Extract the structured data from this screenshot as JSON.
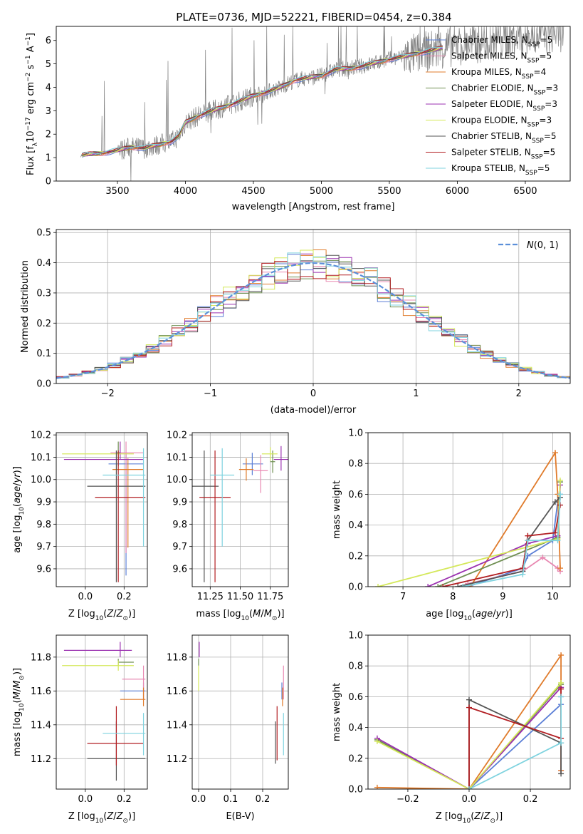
{
  "figure": {
    "title": "PLATE=0736, MJD=52221, FIBERID=0454, z=0.384"
  },
  "colors": {
    "Chabrier MILES": "#5b7fd6",
    "Salpeter MILES": "#e889b2",
    "Kroupa MILES": "#e07b2b",
    "Chabrier ELODIE": "#6f8f52",
    "Salpeter ELODIE": "#9b32b0",
    "Kroupa ELODIE": "#d4e85a",
    "Chabrier STELIB": "#555555",
    "Salpeter STELIB": "#b21e22",
    "Kroupa STELIB": "#7fd3df",
    "data": "#808080",
    "gaussian": "#5b8fd9"
  },
  "models": [
    "Chabrier MILES",
    "Salpeter MILES",
    "Kroupa MILES",
    "Chabrier ELODIE",
    "Salpeter ELODIE",
    "Kroupa ELODIE",
    "Chabrier STELIB",
    "Salpeter STELIB",
    "Kroupa STELIB"
  ],
  "chart_data": [
    {
      "id": "spectrum",
      "type": "line",
      "xlabel": "wavelength [Angstrom, rest frame]",
      "ylabel": "Flux [f_λ 10^-17 erg cm^-2 s^-1 A^-1]",
      "xlim": [
        3050,
        6830
      ],
      "ylim": [
        0,
        6.6
      ],
      "xticks": [
        3500,
        4000,
        4500,
        5000,
        5500,
        6000,
        6500
      ],
      "yticks": [
        0,
        1,
        2,
        3,
        4,
        5,
        6
      ],
      "grid": false,
      "legend": {
        "placement": "upper right",
        "entries": [
          {
            "model": "Chabrier MILES",
            "label": "Chabrier MILES, N_SSP=5"
          },
          {
            "model": "Salpeter MILES",
            "label": "Salpeter MILES, N_SSP=5"
          },
          {
            "model": "Kroupa MILES",
            "label": "Kroupa MILES, N_SSP=4"
          },
          {
            "model": "Chabrier ELODIE",
            "label": "Chabrier ELODIE, N_SSP=3"
          },
          {
            "model": "Salpeter ELODIE",
            "label": "Salpeter ELODIE, N_SSP=3"
          },
          {
            "model": "Kroupa ELODIE",
            "label": "Kroupa ELODIE, N_SSP=3"
          },
          {
            "model": "Chabrier STELIB",
            "label": "Chabrier STELIB, N_SSP=5"
          },
          {
            "model": "Salpeter STELIB",
            "label": "Salpeter STELIB, N_SSP=5"
          },
          {
            "model": "Kroupa STELIB",
            "label": "Kroupa STELIB, N_SSP=5"
          }
        ]
      },
      "model_continuum": {
        "x": [
          3240,
          3300,
          3400,
          3500,
          3600,
          3700,
          3800,
          3900,
          3950,
          4000,
          4100,
          4200,
          4300,
          4400,
          4500,
          4600,
          4700,
          4800,
          4900,
          5000,
          5100,
          5200,
          5300,
          5400,
          5500,
          5600,
          5700,
          5800,
          5900
        ],
        "y": [
          1.1,
          1.15,
          1.2,
          1.3,
          1.45,
          1.4,
          1.55,
          1.7,
          1.9,
          2.5,
          2.8,
          3.0,
          3.2,
          3.4,
          3.65,
          3.8,
          4.0,
          4.3,
          4.4,
          4.5,
          4.75,
          4.8,
          4.9,
          5.05,
          5.2,
          5.3,
          5.45,
          5.55,
          5.7
        ]
      }
    },
    {
      "id": "residuals",
      "type": "line",
      "xlabel": "(data-model)/error",
      "ylabel": "Normed distribution",
      "xlim": [
        -2.5,
        2.5
      ],
      "ylim": [
        0,
        0.51
      ],
      "xticks": [
        -2,
        -1,
        0,
        1,
        2
      ],
      "yticks": [
        0.0,
        0.1,
        0.2,
        0.3,
        0.4,
        0.5
      ],
      "grid": true,
      "legend": {
        "placement": "upper right",
        "entries": [
          {
            "label": "N(0,1)"
          }
        ]
      },
      "series": [
        {
          "name": "N(0,1)",
          "mean": 0,
          "sigma": 1,
          "style": "dashed"
        }
      ]
    },
    {
      "id": "age_vs_Z",
      "type": "scatter",
      "xlabel": "Z [log10(Z/Z_sun)]",
      "ylabel": "age  [log10(age/yr)]",
      "xlim": [
        -0.15,
        0.32
      ],
      "ylim": [
        9.52,
        10.21
      ],
      "xticks": [
        0.0,
        0.2
      ],
      "yticks": [
        9.6,
        9.7,
        9.8,
        9.9,
        10.0,
        10.1,
        10.2
      ],
      "grid": true,
      "points": [
        {
          "model": "Chabrier MILES",
          "x": 0.21,
          "y": 10.07,
          "xerr": [
            0.09,
            0.09
          ],
          "yerr": [
            0.5,
            0.05
          ]
        },
        {
          "model": "Salpeter MILES",
          "x": 0.21,
          "y": 10.12,
          "xerr": [
            0.08,
            0.09
          ],
          "yerr": [
            0.45,
            0.05
          ]
        },
        {
          "model": "Kroupa MILES",
          "x": 0.22,
          "y": 10.045,
          "xerr": [
            0.08,
            0.08
          ],
          "yerr": [
            0.35,
            0.05
          ]
        },
        {
          "model": "Chabrier ELODIE",
          "x": 0.17,
          "y": 10.12,
          "xerr": [
            0.01,
            0.01
          ],
          "yerr": [
            0.06,
            0.05
          ]
        },
        {
          "model": "Salpeter ELODIE",
          "x": 0.18,
          "y": 10.09,
          "xerr": [
            0.29,
            0.12
          ],
          "yerr": [
            0.0,
            0.08
          ]
        },
        {
          "model": "Kroupa ELODIE",
          "x": 0.17,
          "y": 10.115,
          "xerr": [
            0.29,
            0.08
          ],
          "yerr": [
            0.0,
            0.0
          ]
        },
        {
          "model": "Chabrier STELIB",
          "x": 0.16,
          "y": 9.97,
          "xerr": [
            0.15,
            0.15
          ],
          "yerr": [
            0.43,
            0.16
          ]
        },
        {
          "model": "Salpeter STELIB",
          "x": 0.17,
          "y": 9.92,
          "xerr": [
            0.12,
            0.14
          ],
          "yerr": [
            0.38,
            0.21
          ]
        },
        {
          "model": "Kroupa STELIB",
          "x": 0.3,
          "y": 10.02,
          "xerr": [
            0.21,
            0.01
          ],
          "yerr": [
            0.32,
            0.12
          ]
        }
      ]
    },
    {
      "id": "age_vs_mass",
      "type": "scatter",
      "xlabel": "mass [log10(M/M_sun)]",
      "ylabel": "",
      "xlim": [
        11.1,
        11.9
      ],
      "ylim": [
        9.52,
        10.21
      ],
      "xticks": [
        11.25,
        11.5,
        11.75
      ],
      "yticks": [
        9.6,
        9.7,
        9.8,
        9.9,
        10.0,
        10.1,
        10.2
      ],
      "grid": true,
      "points": [
        {
          "model": "Chabrier MILES",
          "x": 11.6,
          "y": 10.07,
          "xerr": [
            0.08,
            0.09
          ],
          "yerr": [
            0.05,
            0.05
          ]
        },
        {
          "model": "Salpeter MILES",
          "x": 11.67,
          "y": 10.04,
          "xerr": [
            0.06,
            0.06
          ],
          "yerr": [
            0.1,
            0.07
          ]
        },
        {
          "model": "Kroupa MILES",
          "x": 11.55,
          "y": 10.045,
          "xerr": [
            0.06,
            0.06
          ],
          "yerr": [
            0.05,
            0.05
          ]
        },
        {
          "model": "Chabrier ELODIE",
          "x": 11.77,
          "y": 10.08,
          "xerr": [
            0.02,
            0.02
          ],
          "yerr": [
            0.05,
            0.05
          ]
        },
        {
          "model": "Salpeter ELODIE",
          "x": 11.84,
          "y": 10.09,
          "xerr": [
            0.06,
            0.06
          ],
          "yerr": [
            0.05,
            0.06
          ]
        },
        {
          "model": "Kroupa ELODIE",
          "x": 11.75,
          "y": 10.115,
          "xerr": [
            0.07,
            0.06
          ],
          "yerr": [
            0.03,
            0.03
          ]
        },
        {
          "model": "Chabrier STELIB",
          "x": 11.2,
          "y": 9.97,
          "xerr": [
            0.12,
            0.12
          ],
          "yerr": [
            0.43,
            0.16
          ]
        },
        {
          "model": "Salpeter STELIB",
          "x": 11.29,
          "y": 9.92,
          "xerr": [
            0.13,
            0.13
          ],
          "yerr": [
            0.38,
            0.21
          ]
        },
        {
          "model": "Kroupa STELIB",
          "x": 11.35,
          "y": 10.02,
          "xerr": [
            0.1,
            0.1
          ],
          "yerr": [
            0.32,
            0.12
          ]
        }
      ]
    },
    {
      "id": "mass_weight_vs_age",
      "type": "line",
      "xlabel": "age  [log10(age/yr)]",
      "ylabel": "mass weight",
      "xlim": [
        6.3,
        10.35
      ],
      "ylim": [
        0,
        1.0
      ],
      "xticks": [
        7,
        8,
        9,
        10
      ],
      "yticks": [
        0.0,
        0.2,
        0.4,
        0.6,
        0.8,
        1.0
      ],
      "grid": true,
      "series": [
        {
          "model": "Chabrier MILES",
          "x": [
            8.3,
            9.4,
            9.5,
            10.0,
            10.1,
            10.15
          ],
          "y": [
            0.0,
            0.12,
            0.2,
            0.3,
            0.55,
            0.6
          ]
        },
        {
          "model": "Salpeter MILES",
          "x": [
            8.3,
            9.4,
            9.8,
            10.1,
            10.15
          ],
          "y": [
            0.02,
            0.1,
            0.19,
            0.12,
            0.1
          ]
        },
        {
          "model": "Kroupa MILES",
          "x": [
            8.35,
            10.05,
            10.1,
            10.15
          ],
          "y": [
            0.0,
            0.87,
            0.6,
            0.12
          ]
        },
        {
          "model": "Chabrier ELODIE",
          "x": [
            7.7,
            10.1,
            10.15
          ],
          "y": [
            0.0,
            0.32,
            0.68
          ]
        },
        {
          "model": "Salpeter ELODIE",
          "x": [
            7.5,
            9.5,
            10.1,
            10.15
          ],
          "y": [
            0.0,
            0.28,
            0.33,
            0.66
          ]
        },
        {
          "model": "Kroupa ELODIE",
          "x": [
            6.5,
            10.1,
            10.15
          ],
          "y": [
            0.0,
            0.31,
            0.69
          ]
        },
        {
          "model": "Chabrier STELIB",
          "x": [
            8.1,
            9.4,
            9.5,
            10.05,
            10.15
          ],
          "y": [
            0.0,
            0.1,
            0.3,
            0.55,
            0.58
          ]
        },
        {
          "model": "Salpeter STELIB",
          "x": [
            7.8,
            9.4,
            9.5,
            10.05,
            10.15
          ],
          "y": [
            0.0,
            0.12,
            0.33,
            0.35,
            0.53
          ]
        },
        {
          "model": "Kroupa STELIB",
          "x": [
            8.2,
            9.4,
            9.5,
            10.1,
            10.15
          ],
          "y": [
            0.0,
            0.08,
            0.3,
            0.3,
            0.6
          ]
        }
      ]
    },
    {
      "id": "mass_vs_Z",
      "type": "scatter",
      "xlabel": "Z [log10(Z/Z_sun)]",
      "ylabel": "mass [log10(M/M_sun)]",
      "xlim": [
        -0.15,
        0.32
      ],
      "ylim": [
        11.02,
        11.93
      ],
      "xticks": [
        0.0,
        0.2
      ],
      "yticks": [
        11.2,
        11.4,
        11.6,
        11.8
      ],
      "grid": true,
      "points": [
        {
          "model": "Chabrier MILES",
          "x": 0.3,
          "y": 11.6,
          "xerr": [
            0.12,
            0.01
          ],
          "yerr": [
            0.05,
            0.05
          ]
        },
        {
          "model": "Salpeter MILES",
          "x": 0.3,
          "y": 11.67,
          "xerr": [
            0.11,
            0.01
          ],
          "yerr": [
            0.12,
            0.08
          ]
        },
        {
          "model": "Kroupa MILES",
          "x": 0.3,
          "y": 11.55,
          "xerr": [
            0.12,
            0.01
          ],
          "yerr": [
            0.04,
            0.07
          ]
        },
        {
          "model": "Chabrier ELODIE",
          "x": 0.17,
          "y": 11.77,
          "xerr": [
            0.0,
            0.08
          ],
          "yerr": [
            0.02,
            0.02
          ]
        },
        {
          "model": "Salpeter ELODIE",
          "x": 0.18,
          "y": 11.84,
          "xerr": [
            0.29,
            0.06
          ],
          "yerr": [
            0.04,
            0.05
          ]
        },
        {
          "model": "Kroupa ELODIE",
          "x": 0.17,
          "y": 11.75,
          "xerr": [
            0.29,
            0.08
          ],
          "yerr": [
            0.03,
            0.03
          ]
        },
        {
          "model": "Chabrier STELIB",
          "x": 0.16,
          "y": 11.2,
          "xerr": [
            0.15,
            0.15
          ],
          "yerr": [
            0.13,
            0.22
          ]
        },
        {
          "model": "Salpeter STELIB",
          "x": 0.16,
          "y": 11.29,
          "xerr": [
            0.15,
            0.14
          ],
          "yerr": [
            0.13,
            0.22
          ]
        },
        {
          "model": "Kroupa STELIB",
          "x": 0.3,
          "y": 11.35,
          "xerr": [
            0.21,
            0.01
          ],
          "yerr": [
            0.13,
            0.12
          ]
        }
      ]
    },
    {
      "id": "mass_vs_EBV",
      "type": "scatter",
      "xlabel": "E(B-V)",
      "ylabel": "",
      "xlim": [
        -0.02,
        0.28
      ],
      "ylim": [
        11.02,
        11.93
      ],
      "xticks": [
        0.0,
        0.1,
        0.2
      ],
      "yticks": [
        11.2,
        11.4,
        11.6,
        11.8
      ],
      "grid": true,
      "points": [
        {
          "model": "Chabrier MILES",
          "x": 0.26,
          "y": 11.6,
          "xerr": [
            0,
            0
          ],
          "yerr": [
            0.05,
            0.05
          ]
        },
        {
          "model": "Salpeter MILES",
          "x": 0.265,
          "y": 11.67,
          "xerr": [
            0,
            0
          ],
          "yerr": [
            0.12,
            0.08
          ]
        },
        {
          "model": "Kroupa MILES",
          "x": 0.262,
          "y": 11.55,
          "xerr": [
            0,
            0
          ],
          "yerr": [
            0.04,
            0.07
          ]
        },
        {
          "model": "Chabrier ELODIE",
          "x": 0.0,
          "y": 11.77,
          "xerr": [
            0,
            0
          ],
          "yerr": [
            0.02,
            0.02
          ]
        },
        {
          "model": "Salpeter ELODIE",
          "x": 0.002,
          "y": 11.84,
          "xerr": [
            0,
            0
          ],
          "yerr": [
            0.04,
            0.05
          ]
        },
        {
          "model": "Kroupa ELODIE",
          "x": 0.0,
          "y": 11.7,
          "xerr": [
            0,
            0
          ],
          "yerr": [
            0.1,
            0.05
          ]
        },
        {
          "model": "Chabrier STELIB",
          "x": 0.24,
          "y": 11.2,
          "xerr": [
            0,
            0
          ],
          "yerr": [
            0.03,
            0.22
          ]
        },
        {
          "model": "Salpeter STELIB",
          "x": 0.245,
          "y": 11.29,
          "xerr": [
            0,
            0
          ],
          "yerr": [
            0.1,
            0.22
          ]
        },
        {
          "model": "Kroupa STELIB",
          "x": 0.265,
          "y": 11.35,
          "xerr": [
            0,
            0
          ],
          "yerr": [
            0.13,
            0.12
          ]
        }
      ]
    },
    {
      "id": "mass_weight_vs_Z",
      "type": "line",
      "xlabel": "Z [log10(Z/Z_sun)]",
      "ylabel": "mass weight",
      "xlim": [
        -0.33,
        0.33
      ],
      "ylim": [
        0,
        1.0
      ],
      "xticks": [
        -0.2,
        0.0,
        0.2
      ],
      "yticks": [
        0.0,
        0.2,
        0.4,
        0.6,
        0.8,
        1.0
      ],
      "grid": true,
      "series": [
        {
          "model": "Chabrier MILES",
          "x": [
            0.0,
            0.3,
            0.3
          ],
          "y": [
            0.0,
            0.55,
            0.6
          ]
        },
        {
          "model": "Salpeter MILES",
          "x": [
            0.0,
            0.3,
            0.3
          ],
          "y": [
            0.0,
            0.66,
            0.12
          ]
        },
        {
          "model": "Kroupa MILES",
          "x": [
            -0.3,
            0.0,
            0.3,
            0.3
          ],
          "y": [
            0.01,
            0.0,
            0.87,
            0.12
          ]
        },
        {
          "model": "Chabrier ELODIE",
          "x": [
            -0.3,
            0.0,
            0.3
          ],
          "y": [
            0.32,
            0.0,
            0.68
          ]
        },
        {
          "model": "Salpeter ELODIE",
          "x": [
            -0.3,
            0.0,
            0.3
          ],
          "y": [
            0.33,
            0.0,
            0.66
          ]
        },
        {
          "model": "Kroupa ELODIE",
          "x": [
            -0.3,
            0.0,
            0.3
          ],
          "y": [
            0.31,
            0.0,
            0.69
          ]
        },
        {
          "model": "Chabrier STELIB",
          "x": [
            0.0,
            0.0,
            0.3,
            0.3
          ],
          "y": [
            0.0,
            0.58,
            0.3,
            0.1
          ]
        },
        {
          "model": "Salpeter STELIB",
          "x": [
            0.0,
            0.0,
            0.3,
            0.3
          ],
          "y": [
            0.0,
            0.53,
            0.33,
            0.65
          ]
        },
        {
          "model": "Kroupa STELIB",
          "x": [
            0.0,
            0.3,
            0.3
          ],
          "y": [
            0.0,
            0.3,
            0.6
          ]
        }
      ]
    }
  ]
}
